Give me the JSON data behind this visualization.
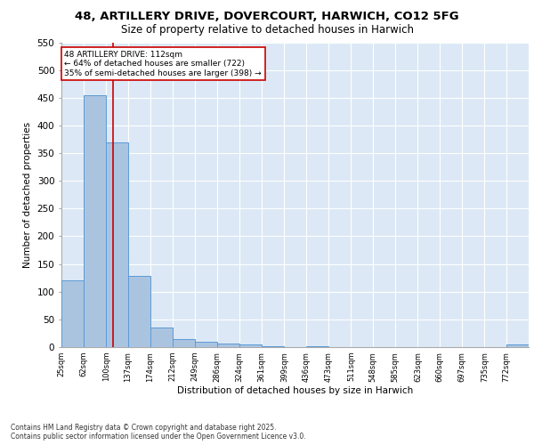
{
  "title1": "48, ARTILLERY DRIVE, DOVERCOURT, HARWICH, CO12 5FG",
  "title2": "Size of property relative to detached houses in Harwich",
  "xlabel": "Distribution of detached houses by size in Harwich",
  "ylabel": "Number of detached properties",
  "footnote1": "Contains HM Land Registry data © Crown copyright and database right 2025.",
  "footnote2": "Contains public sector information licensed under the Open Government Licence v3.0.",
  "annotation_line1": "48 ARTILLERY DRIVE: 112sqm",
  "annotation_line2": "← 64% of detached houses are smaller (722)",
  "annotation_line3": "35% of semi-detached houses are larger (398) →",
  "categories": [
    "25sqm",
    "62sqm",
    "100sqm",
    "137sqm",
    "174sqm",
    "212sqm",
    "249sqm",
    "286sqm",
    "324sqm",
    "361sqm",
    "399sqm",
    "436sqm",
    "473sqm",
    "511sqm",
    "548sqm",
    "585sqm",
    "623sqm",
    "660sqm",
    "697sqm",
    "735sqm",
    "772sqm"
  ],
  "bin_edges": [
    25,
    62,
    100,
    137,
    174,
    212,
    249,
    286,
    324,
    361,
    399,
    436,
    473,
    511,
    548,
    585,
    623,
    660,
    697,
    735,
    772,
    809
  ],
  "values": [
    120,
    455,
    370,
    128,
    35,
    14,
    9,
    6,
    5,
    2,
    0,
    2,
    0,
    0,
    0,
    0,
    0,
    0,
    0,
    0,
    5
  ],
  "bar_color": "#aac4e0",
  "bar_edge_color": "#5b9bd5",
  "vline_x": 112,
  "vline_color": "#cc0000",
  "background_color": "#dce8f5",
  "grid_color": "#ffffff",
  "annotation_box_color": "#cc0000",
  "ylim": [
    0,
    550
  ],
  "yticks": [
    0,
    50,
    100,
    150,
    200,
    250,
    300,
    350,
    400,
    450,
    500,
    550
  ]
}
